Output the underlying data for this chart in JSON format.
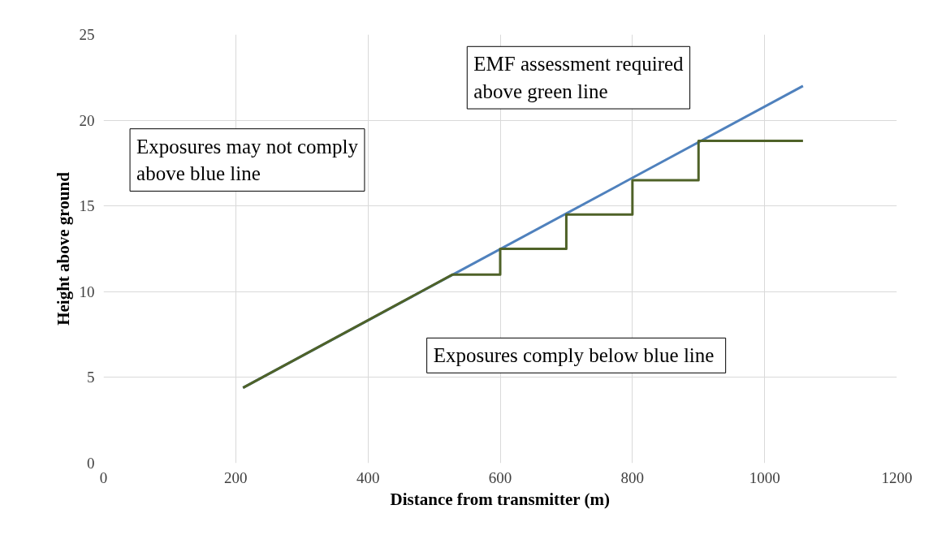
{
  "chart_data": {
    "type": "line",
    "xlabel": "Distance from transmitter (m)",
    "ylabel": "Height above ground",
    "xlim": [
      0,
      1200
    ],
    "xticks": [
      0,
      200,
      400,
      600,
      800,
      1000,
      1200
    ],
    "ylim": [
      0,
      25
    ],
    "yticks": [
      0,
      5,
      10,
      15,
      20,
      25
    ],
    "grid": true,
    "marker": "none",
    "line_style": "solid",
    "series": [
      {
        "color": "#4f81bd",
        "x": [
          211,
          1058
        ],
        "values": [
          4.4,
          22.0
        ]
      },
      {
        "color": "#4f6228",
        "x": [
          211,
          528,
          600,
          600,
          700,
          700,
          800,
          800,
          900,
          900,
          1058
        ],
        "values": [
          4.4,
          11.0,
          11.0,
          12.5,
          12.5,
          14.5,
          14.5,
          16.5,
          16.5,
          18.8,
          18.8
        ]
      }
    ],
    "annotations": [
      "EMF assessment required above green line",
      "Exposures may not comply above blue line",
      "Exposures comply below blue  line"
    ]
  }
}
